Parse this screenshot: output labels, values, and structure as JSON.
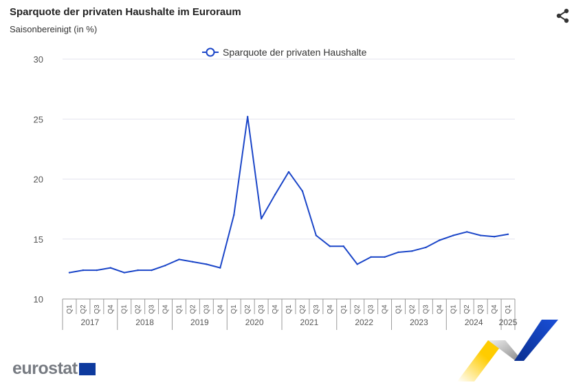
{
  "header": {
    "title": "Sparquote der privaten Haushalte im Euroraum",
    "subtitle": "Saisonbereinigt (in %)",
    "share_icon": "share-icon"
  },
  "logo": {
    "text": "eurostat"
  },
  "colors": {
    "series": "#1a45c8",
    "grid": "#e3e3ee",
    "axis": "#666",
    "text": "#555"
  },
  "chart_data": {
    "type": "line",
    "title": "Sparquote der privaten Haushalte im Euroraum",
    "subtitle": "Saisonbereinigt (in %)",
    "ylim": [
      10,
      30
    ],
    "yticks": [
      10,
      15,
      20,
      25,
      30
    ],
    "legend": {
      "position": "top-center",
      "entries": [
        "Sparquote der privaten Haushalte"
      ]
    },
    "grid": true,
    "years": [
      "2017",
      "2018",
      "2019",
      "2020",
      "2021",
      "2022",
      "2023",
      "2024",
      "2025"
    ],
    "quarters": [
      "Q1",
      "Q2",
      "Q3",
      "Q4"
    ],
    "x": [
      "2017Q1",
      "2017Q2",
      "2017Q3",
      "2017Q4",
      "2018Q1",
      "2018Q2",
      "2018Q3",
      "2018Q4",
      "2019Q1",
      "2019Q2",
      "2019Q3",
      "2019Q4",
      "2020Q1",
      "2020Q2",
      "2020Q3",
      "2020Q4",
      "2021Q1",
      "2021Q2",
      "2021Q3",
      "2021Q4",
      "2022Q1",
      "2022Q2",
      "2022Q3",
      "2022Q4",
      "2023Q1",
      "2023Q2",
      "2023Q3",
      "2023Q4",
      "2024Q1",
      "2024Q2",
      "2024Q3",
      "2024Q4",
      "2025Q1"
    ],
    "series": [
      {
        "name": "Sparquote der privaten Haushalte",
        "values": [
          12.2,
          12.4,
          12.4,
          12.6,
          12.2,
          12.4,
          12.4,
          12.8,
          13.3,
          13.1,
          12.9,
          12.6,
          17.0,
          25.2,
          16.7,
          18.7,
          20.6,
          19.0,
          15.3,
          14.4,
          14.4,
          12.9,
          13.5,
          13.5,
          13.9,
          14.0,
          14.3,
          14.9,
          15.3,
          15.6,
          15.3,
          15.2,
          15.4
        ]
      }
    ]
  }
}
